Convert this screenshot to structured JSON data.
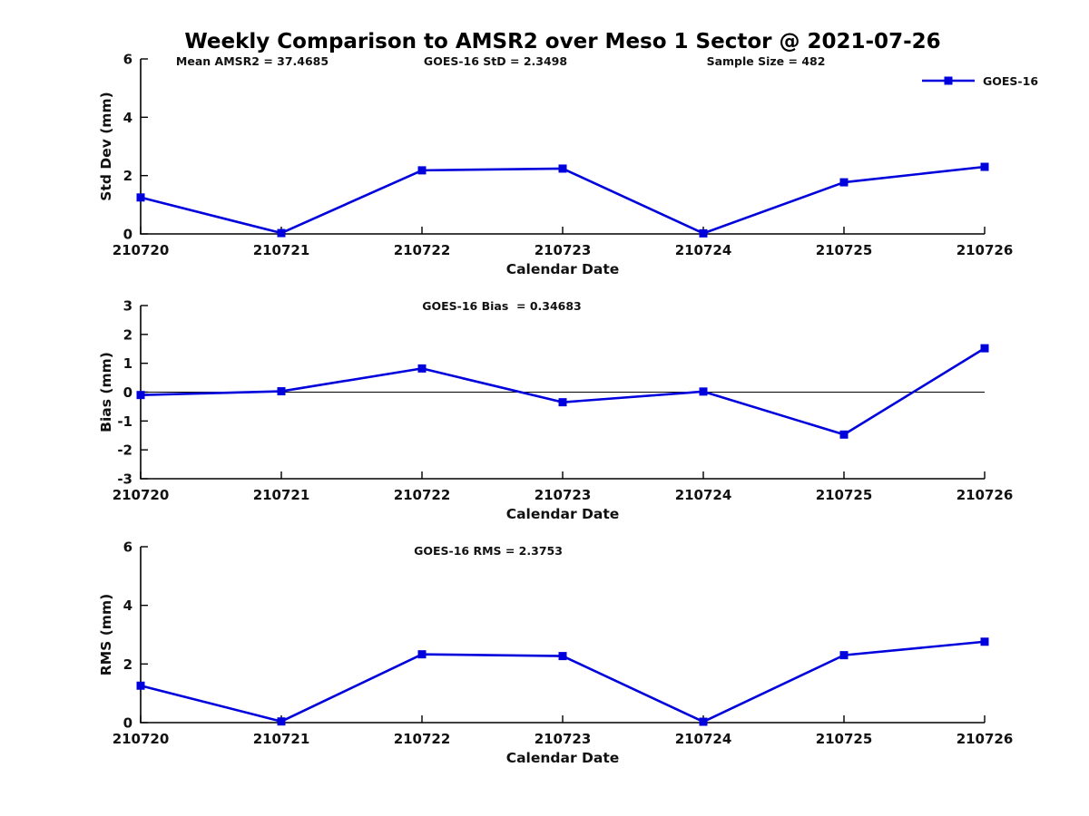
{
  "title": "Weekly Comparison to AMSR2 over Meso 1 Sector @ 2021-07-26",
  "legend": {
    "label": "GOES-16",
    "position": "top-right"
  },
  "colors": {
    "line": "#0000dd",
    "axis": "#000000",
    "text": "#111111",
    "background": "#ffffff"
  },
  "chart_data": [
    {
      "type": "line",
      "panel": "std-dev",
      "categories": [
        "210720",
        "210721",
        "210722",
        "210723",
        "210724",
        "210725",
        "210726"
      ],
      "series": [
        {
          "name": "GOES-16",
          "values": [
            1.25,
            0.03,
            2.18,
            2.24,
            0.02,
            1.77,
            2.3
          ]
        }
      ],
      "annotations": [
        {
          "text": "Mean AMSR2 = 37.4685"
        },
        {
          "text": "GOES-16 StD = 2.3498"
        },
        {
          "text": "Sample Size = 482"
        }
      ],
      "xlabel": "Calendar Date",
      "ylabel": "Std Dev (mm)",
      "ylim": [
        0,
        6
      ],
      "yticks": [
        0,
        2,
        4,
        6
      ],
      "zero_line": false,
      "grid": false,
      "legend_position": "top-right"
    },
    {
      "type": "line",
      "panel": "bias",
      "categories": [
        "210720",
        "210721",
        "210722",
        "210723",
        "210724",
        "210725",
        "210726"
      ],
      "series": [
        {
          "name": "GOES-16",
          "values": [
            -0.1,
            0.03,
            0.82,
            -0.35,
            0.02,
            -1.47,
            1.52
          ]
        }
      ],
      "annotations": [
        {
          "text": "GOES-16 Bias  = 0.34683"
        }
      ],
      "xlabel": "Calendar Date",
      "ylabel": "Bias (mm)",
      "ylim": [
        -3,
        3
      ],
      "yticks": [
        -3,
        -2,
        -1,
        0,
        1,
        2,
        3
      ],
      "zero_line": true,
      "grid": false
    },
    {
      "type": "line",
      "panel": "rms",
      "categories": [
        "210720",
        "210721",
        "210722",
        "210723",
        "210724",
        "210725",
        "210726"
      ],
      "series": [
        {
          "name": "GOES-16",
          "values": [
            1.26,
            0.04,
            2.33,
            2.27,
            0.03,
            2.3,
            2.76
          ]
        }
      ],
      "annotations": [
        {
          "text": "GOES-16 RMS = 2.3753"
        }
      ],
      "xlabel": "Calendar Date",
      "ylabel": "RMS (mm)",
      "ylim": [
        0,
        6
      ],
      "yticks": [
        0,
        2,
        4,
        6
      ],
      "zero_line": false,
      "grid": false
    }
  ]
}
